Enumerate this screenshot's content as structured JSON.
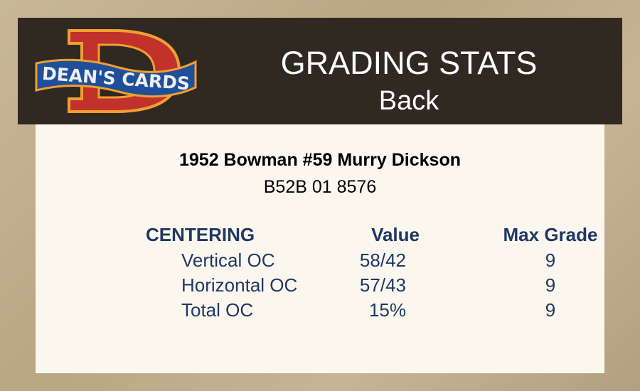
{
  "header": {
    "logo_text": "DEAN'S CARDS",
    "title": "GRADING STATS",
    "subtitle": "Back"
  },
  "card": {
    "title": "1952 Bowman #59 Murry Dickson",
    "cert": "B52B 01 8576"
  },
  "table": {
    "headers": {
      "category": "CENTERING",
      "value": "Value",
      "max_grade": "Max Grade"
    },
    "rows": [
      {
        "label": "Vertical OC",
        "value": "58/42",
        "max_grade": "9"
      },
      {
        "label": "Horizontal OC",
        "value": "57/43",
        "max_grade": "9"
      },
      {
        "label": "Total OC",
        "value": "15%",
        "max_grade": "9"
      }
    ]
  },
  "colors": {
    "header_bg": "#2f2921",
    "card_bg": "#fcf7ee",
    "table_text": "#1f3864",
    "logo_red": "#c0322b",
    "logo_blue": "#1f4f9a"
  }
}
